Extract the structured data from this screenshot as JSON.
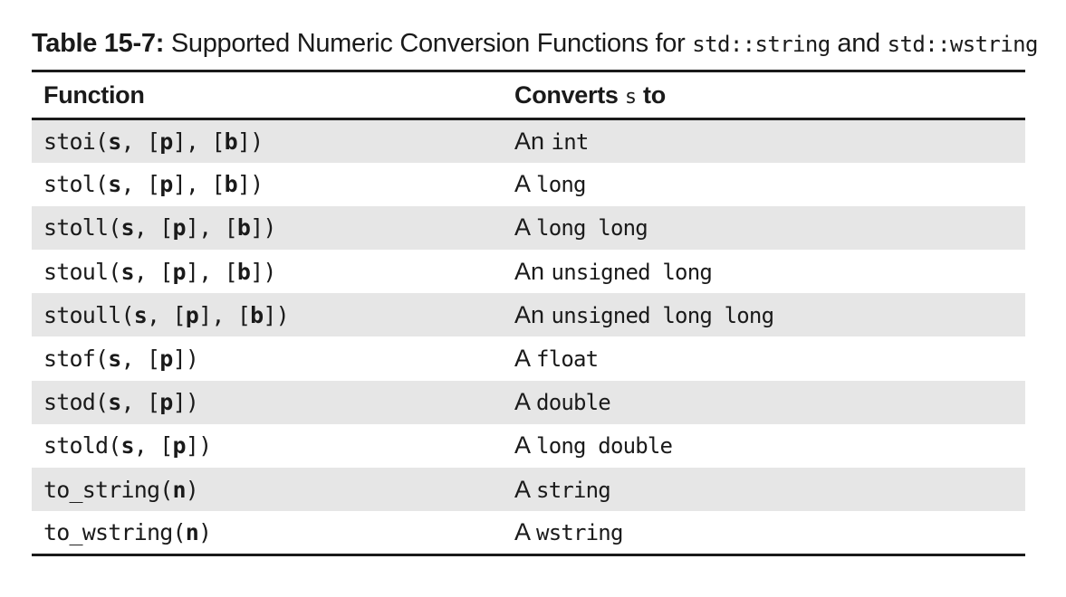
{
  "caption": {
    "label": "Table 15-7:",
    "text_before": "Supported Numeric Conversion Functions for",
    "code_1": "std::string",
    "text_and": "and",
    "code_2": "std::wstring"
  },
  "table": {
    "headers": {
      "function": "Function",
      "converts_prefix": "Converts",
      "converts_var": "s",
      "converts_suffix": "to"
    },
    "rows": [
      {
        "fn_name": "stoi(",
        "args": [
          {
            "t": "s",
            "b": true
          },
          {
            "t": ", [",
            "b": false
          },
          {
            "t": "p",
            "b": true
          },
          {
            "t": "], [",
            "b": false
          },
          {
            "t": "b",
            "b": true
          },
          {
            "t": "])",
            "b": false
          }
        ],
        "article": "An",
        "type": "int"
      },
      {
        "fn_name": "stol(",
        "args": [
          {
            "t": "s",
            "b": true
          },
          {
            "t": ", [",
            "b": false
          },
          {
            "t": "p",
            "b": true
          },
          {
            "t": "], [",
            "b": false
          },
          {
            "t": "b",
            "b": true
          },
          {
            "t": "])",
            "b": false
          }
        ],
        "article": "A",
        "type": "long"
      },
      {
        "fn_name": "stoll(",
        "args": [
          {
            "t": "s",
            "b": true
          },
          {
            "t": ", [",
            "b": false
          },
          {
            "t": "p",
            "b": true
          },
          {
            "t": "], [",
            "b": false
          },
          {
            "t": "b",
            "b": true
          },
          {
            "t": "])",
            "b": false
          }
        ],
        "article": "A",
        "type": "long long"
      },
      {
        "fn_name": "stoul(",
        "args": [
          {
            "t": "s",
            "b": true
          },
          {
            "t": ", [",
            "b": false
          },
          {
            "t": "p",
            "b": true
          },
          {
            "t": "], [",
            "b": false
          },
          {
            "t": "b",
            "b": true
          },
          {
            "t": "])",
            "b": false
          }
        ],
        "article": "An",
        "type": "unsigned long"
      },
      {
        "fn_name": "stoull(",
        "args": [
          {
            "t": "s",
            "b": true
          },
          {
            "t": ", [",
            "b": false
          },
          {
            "t": "p",
            "b": true
          },
          {
            "t": "], [",
            "b": false
          },
          {
            "t": "b",
            "b": true
          },
          {
            "t": "])",
            "b": false
          }
        ],
        "article": "An",
        "type": "unsigned long long"
      },
      {
        "fn_name": "stof(",
        "args": [
          {
            "t": "s",
            "b": true
          },
          {
            "t": ", [",
            "b": false
          },
          {
            "t": "p",
            "b": true
          },
          {
            "t": "])",
            "b": false
          }
        ],
        "article": "A",
        "type": "float"
      },
      {
        "fn_name": "stod(",
        "args": [
          {
            "t": "s",
            "b": true
          },
          {
            "t": ", [",
            "b": false
          },
          {
            "t": "p",
            "b": true
          },
          {
            "t": "])",
            "b": false
          }
        ],
        "article": "A",
        "type": "double"
      },
      {
        "fn_name": "stold(",
        "args": [
          {
            "t": "s",
            "b": true
          },
          {
            "t": ", [",
            "b": false
          },
          {
            "t": "p",
            "b": true
          },
          {
            "t": "])",
            "b": false
          }
        ],
        "article": "A",
        "type": "long double"
      },
      {
        "fn_name": "to_string(",
        "args": [
          {
            "t": "n",
            "b": true
          },
          {
            "t": ")",
            "b": false
          }
        ],
        "article": "A",
        "type": "string"
      },
      {
        "fn_name": "to_wstring(",
        "args": [
          {
            "t": "n",
            "b": true
          },
          {
            "t": ")",
            "b": false
          }
        ],
        "article": "A",
        "type": "wstring"
      }
    ]
  }
}
